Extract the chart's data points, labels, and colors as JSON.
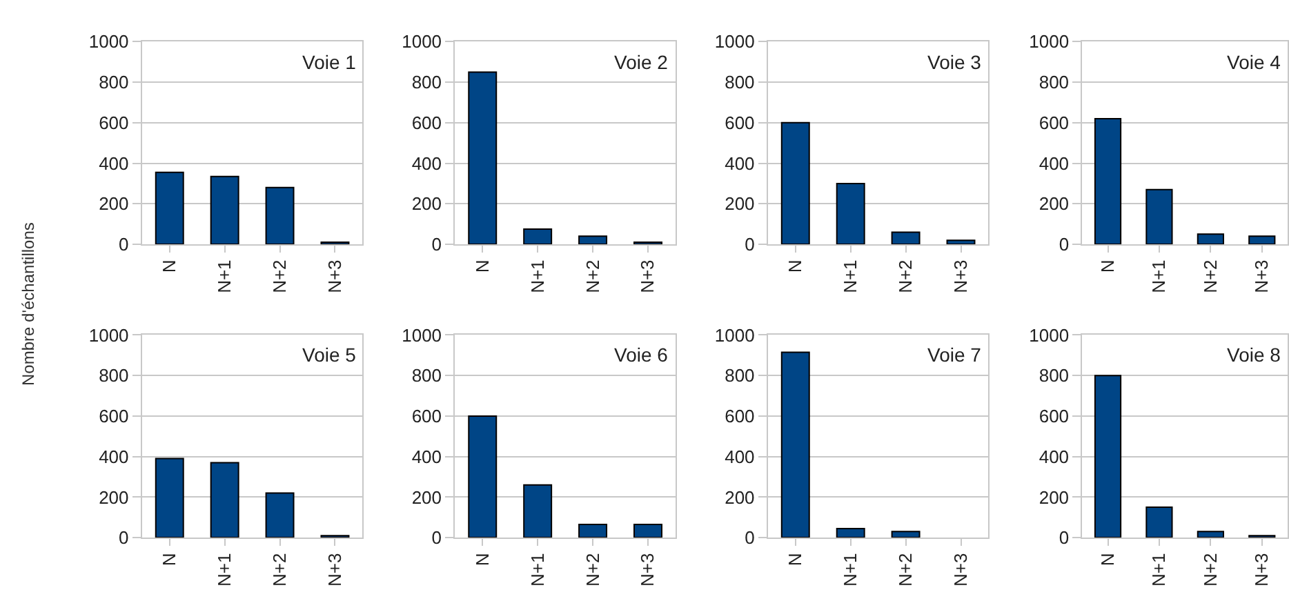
{
  "chart_data": [
    {
      "type": "bar",
      "title": "Voie 1",
      "ylabel": "Nombre d'échantillons",
      "categories": [
        "N",
        "N+1",
        "N+2",
        "N+3"
      ],
      "values": [
        355,
        335,
        280,
        10
      ],
      "color": "#004586",
      "ylim": [
        0,
        1000
      ],
      "yticks": [
        0,
        200,
        400,
        600,
        800,
        1000
      ],
      "grid": "y"
    },
    {
      "type": "bar",
      "title": "Voie 2",
      "categories": [
        "N",
        "N+1",
        "N+2",
        "N+3"
      ],
      "values": [
        850,
        75,
        40,
        10
      ],
      "color": "#004586",
      "ylim": [
        0,
        1000
      ],
      "yticks": [
        0,
        200,
        400,
        600,
        800,
        1000
      ],
      "grid": "y"
    },
    {
      "type": "bar",
      "title": "Voie 3",
      "categories": [
        "N",
        "N+1",
        "N+2",
        "N+3"
      ],
      "values": [
        600,
        300,
        60,
        20
      ],
      "color": "#004586",
      "ylim": [
        0,
        1000
      ],
      "yticks": [
        0,
        200,
        400,
        600,
        800,
        1000
      ],
      "grid": "y"
    },
    {
      "type": "bar",
      "title": "Voie 4",
      "categories": [
        "N",
        "N+1",
        "N+2",
        "N+3"
      ],
      "values": [
        620,
        270,
        50,
        40
      ],
      "color": "#004586",
      "ylim": [
        0,
        1000
      ],
      "yticks": [
        0,
        200,
        400,
        600,
        800,
        1000
      ],
      "grid": "y"
    },
    {
      "type": "bar",
      "title": "Voie 5",
      "categories": [
        "N",
        "N+1",
        "N+2",
        "N+3"
      ],
      "values": [
        390,
        370,
        220,
        10
      ],
      "color": "#004586",
      "ylim": [
        0,
        1000
      ],
      "yticks": [
        0,
        200,
        400,
        600,
        800,
        1000
      ],
      "grid": "y"
    },
    {
      "type": "bar",
      "title": "Voie 6",
      "categories": [
        "N",
        "N+1",
        "N+2",
        "N+3"
      ],
      "values": [
        600,
        260,
        65,
        65
      ],
      "color": "#004586",
      "ylim": [
        0,
        1000
      ],
      "yticks": [
        0,
        200,
        400,
        600,
        800,
        1000
      ],
      "grid": "y"
    },
    {
      "type": "bar",
      "title": "Voie 7",
      "categories": [
        "N",
        "N+1",
        "N+2",
        "N+3"
      ],
      "values": [
        915,
        45,
        30,
        null
      ],
      "color": "#004586",
      "ylim": [
        0,
        1000
      ],
      "yticks": [
        0,
        200,
        400,
        600,
        800,
        1000
      ],
      "grid": "y"
    },
    {
      "type": "bar",
      "title": "Voie 8",
      "categories": [
        "N",
        "N+1",
        "N+2",
        "N+3"
      ],
      "values": [
        800,
        150,
        30,
        10
      ],
      "color": "#004586",
      "ylim": [
        0,
        1000
      ],
      "yticks": [
        0,
        200,
        400,
        600,
        800,
        1000
      ],
      "grid": "y"
    }
  ]
}
